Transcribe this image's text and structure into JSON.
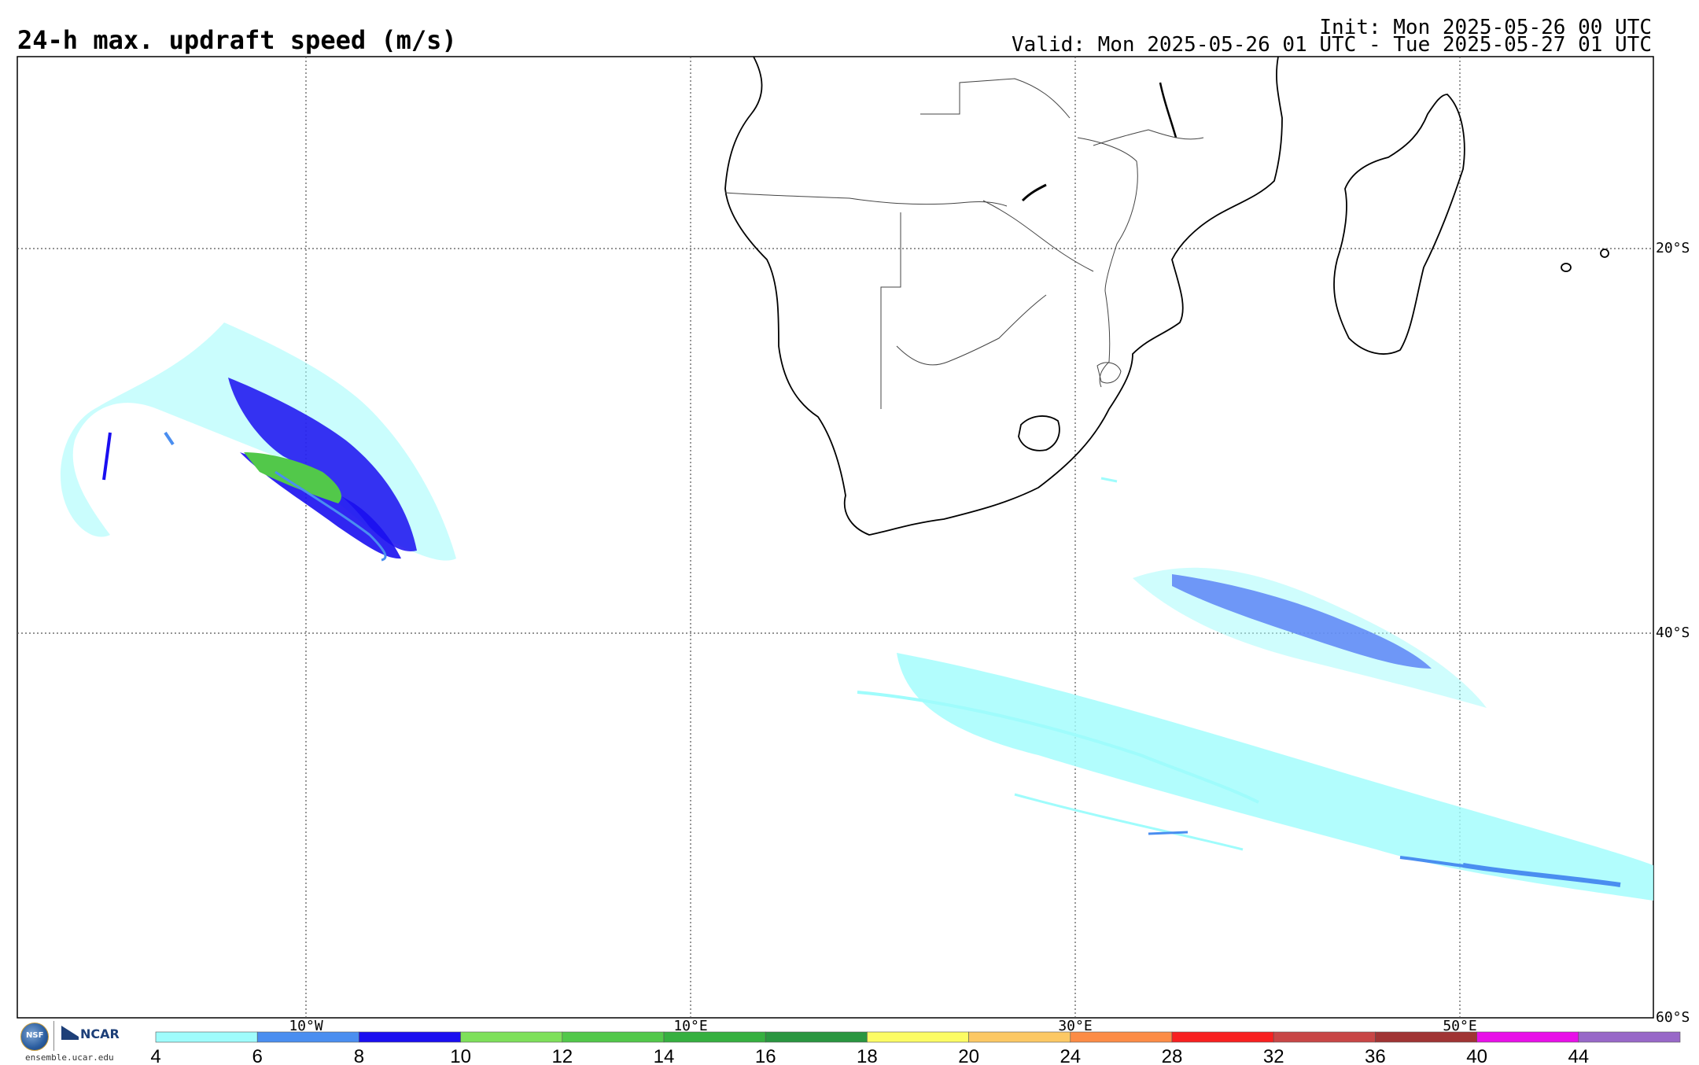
{
  "header": {
    "title": "24-h max. updraft speed (m/s)",
    "init": "Init: Mon 2025-05-26 00 UTC",
    "valid": "Valid: Mon 2025-05-26 01 UTC - Tue 2025-05-27 01 UTC"
  },
  "map": {
    "region": "Southern Africa and South Atlantic / Southwest Indian Ocean",
    "lon_labels": [
      "10°W",
      "10°E",
      "30°E",
      "50°E"
    ],
    "lat_labels": [
      "20°S",
      "40°S",
      "60°S"
    ],
    "gridlines": "dotted"
  },
  "colorbar": {
    "ticks": [
      "4",
      "6",
      "8",
      "10",
      "12",
      "14",
      "16",
      "18",
      "20",
      "24",
      "28",
      "32",
      "36",
      "40",
      "44"
    ],
    "colors": [
      "#9ffcfc",
      "#4a8ef0",
      "#1a0ef0",
      "#7ee05a",
      "#52c84a",
      "#36b040",
      "#2a9640",
      "#fcfc64",
      "#fcc864",
      "#fc8c46",
      "#f82020",
      "#c84646",
      "#a03434",
      "#e810e8",
      "#9868c8"
    ]
  },
  "logos": {
    "nsf": "NSF",
    "ncar": "NCAR",
    "url": "ensemble.ucar.edu"
  }
}
